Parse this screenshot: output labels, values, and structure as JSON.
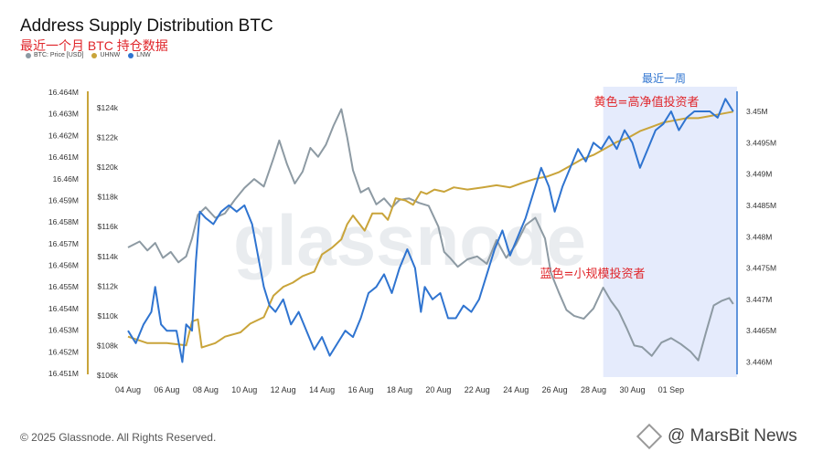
{
  "header": {
    "title": "Address Supply Distribution BTC",
    "subtitle": "最近一个月 BTC 持仓数据"
  },
  "legend": [
    {
      "label": "BTC: Price [USD]",
      "color": "#8d9aa3"
    },
    {
      "label": "UHNW",
      "color": "#c9a43a"
    },
    {
      "label": "LNW",
      "color": "#2f74d0"
    }
  ],
  "footer": {
    "copyright": "© 2025 Glassnode. All Rights Reserved."
  },
  "watermark": {
    "text": "@ MarsBit News"
  },
  "chart_data": {
    "type": "line",
    "x_ticks": [
      "04 Aug",
      "06 Aug",
      "08 Aug",
      "10 Aug",
      "12 Aug",
      "14 Aug",
      "16 Aug",
      "18 Aug",
      "20 Aug",
      "22 Aug",
      "24 Aug",
      "26 Aug",
      "28 Aug",
      "30 Aug",
      "01 Sep"
    ],
    "x_range_days": [
      0,
      31.4
    ],
    "left_axis": {
      "ticks": [
        "16.451M",
        "16.452M",
        "16.453M",
        "16.454M",
        "16.455M",
        "16.456M",
        "16.457M",
        "16.458M",
        "16.459M",
        "16.46M",
        "16.461M",
        "16.462M",
        "16.463M",
        "16.464M"
      ],
      "range": [
        16.451,
        16.464
      ]
    },
    "price_axis": {
      "ticks": [
        "$106k",
        "$108k",
        "$110k",
        "$112k",
        "$114k",
        "$116k",
        "$118k",
        "$120k",
        "$122k",
        "$124k"
      ],
      "range": [
        106,
        124
      ]
    },
    "right_axis": {
      "ticks": [
        "3.446M",
        "3.4465M",
        "3.447M",
        "3.4475M",
        "3.448M",
        "3.4485M",
        "3.449M",
        "3.4495M",
        "3.45M"
      ],
      "range": [
        3.446,
        3.45
      ]
    },
    "series": [
      {
        "name": "BTC: Price [USD]",
        "axis": "price",
        "color": "#8d9aa3",
        "points": [
          [
            0,
            114.6
          ],
          [
            0.6,
            115.0
          ],
          [
            1.0,
            114.4
          ],
          [
            1.4,
            114.9
          ],
          [
            1.8,
            113.9
          ],
          [
            2.2,
            114.3
          ],
          [
            2.6,
            113.6
          ],
          [
            3.0,
            114.0
          ],
          [
            3.3,
            115.2
          ],
          [
            3.6,
            116.8
          ],
          [
            4.0,
            117.3
          ],
          [
            4.5,
            116.6
          ],
          [
            5.0,
            116.9
          ],
          [
            5.5,
            117.8
          ],
          [
            6.0,
            118.6
          ],
          [
            6.5,
            119.2
          ],
          [
            7.0,
            118.7
          ],
          [
            7.5,
            120.6
          ],
          [
            7.8,
            121.8
          ],
          [
            8.2,
            120.2
          ],
          [
            8.6,
            118.9
          ],
          [
            9.0,
            119.7
          ],
          [
            9.4,
            121.3
          ],
          [
            9.8,
            120.7
          ],
          [
            10.2,
            121.5
          ],
          [
            10.6,
            122.8
          ],
          [
            11.0,
            123.9
          ],
          [
            11.3,
            122.0
          ],
          [
            11.6,
            119.8
          ],
          [
            12.0,
            118.3
          ],
          [
            12.4,
            118.6
          ],
          [
            12.8,
            117.5
          ],
          [
            13.2,
            117.9
          ],
          [
            13.6,
            117.3
          ],
          [
            14.0,
            117.8
          ],
          [
            14.5,
            117.9
          ],
          [
            15.0,
            117.6
          ],
          [
            15.5,
            117.4
          ],
          [
            16.0,
            116.0
          ],
          [
            16.3,
            114.3
          ],
          [
            16.6,
            113.9
          ],
          [
            17.0,
            113.3
          ],
          [
            17.5,
            113.8
          ],
          [
            18.0,
            114.0
          ],
          [
            18.5,
            113.5
          ],
          [
            19.0,
            115.1
          ],
          [
            19.5,
            113.9
          ],
          [
            20.0,
            114.8
          ],
          [
            20.5,
            116.1
          ],
          [
            21.0,
            116.6
          ],
          [
            21.5,
            115.2
          ],
          [
            21.8,
            112.9
          ],
          [
            22.2,
            111.6
          ],
          [
            22.6,
            110.4
          ],
          [
            23.0,
            110.0
          ],
          [
            23.5,
            109.8
          ],
          [
            24.0,
            110.5
          ],
          [
            24.5,
            111.9
          ],
          [
            24.9,
            111.0
          ],
          [
            25.3,
            110.3
          ],
          [
            25.7,
            109.2
          ],
          [
            26.1,
            108.0
          ],
          [
            26.5,
            107.9
          ],
          [
            27.0,
            107.3
          ],
          [
            27.5,
            108.2
          ],
          [
            28.0,
            108.5
          ],
          [
            28.5,
            108.1
          ],
          [
            29.0,
            107.6
          ],
          [
            29.4,
            107.0
          ],
          [
            29.8,
            108.9
          ],
          [
            30.2,
            110.7
          ],
          [
            30.6,
            111.0
          ],
          [
            31.0,
            111.2
          ],
          [
            31.2,
            110.8
          ]
        ]
      },
      {
        "name": "UHNW",
        "axis": "left",
        "color": "#c9a43a",
        "points": [
          [
            0,
            16.4527
          ],
          [
            1.0,
            16.4524
          ],
          [
            2.0,
            16.4524
          ],
          [
            3.0,
            16.4523
          ],
          [
            3.3,
            16.4534
          ],
          [
            3.6,
            16.4535
          ],
          [
            3.8,
            16.4522
          ],
          [
            4.5,
            16.4524
          ],
          [
            5.0,
            16.4527
          ],
          [
            5.8,
            16.4529
          ],
          [
            6.3,
            16.4533
          ],
          [
            7.0,
            16.4536
          ],
          [
            7.5,
            16.4546
          ],
          [
            8.0,
            16.455
          ],
          [
            8.5,
            16.4552
          ],
          [
            9.0,
            16.4555
          ],
          [
            9.6,
            16.4557
          ],
          [
            10.0,
            16.4565
          ],
          [
            10.5,
            16.4568
          ],
          [
            11.0,
            16.4572
          ],
          [
            11.3,
            16.4579
          ],
          [
            11.6,
            16.4583
          ],
          [
            12.2,
            16.4576
          ],
          [
            12.6,
            16.4584
          ],
          [
            13.1,
            16.4584
          ],
          [
            13.4,
            16.4581
          ],
          [
            13.8,
            16.4591
          ],
          [
            14.3,
            16.459
          ],
          [
            14.7,
            16.4588
          ],
          [
            15.1,
            16.4594
          ],
          [
            15.4,
            16.4593
          ],
          [
            15.8,
            16.4595
          ],
          [
            16.3,
            16.4594
          ],
          [
            16.8,
            16.4596
          ],
          [
            17.5,
            16.4595
          ],
          [
            18.3,
            16.4596
          ],
          [
            19.0,
            16.4597
          ],
          [
            19.7,
            16.4596
          ],
          [
            20.3,
            16.4598
          ],
          [
            21.0,
            16.46
          ],
          [
            21.6,
            16.4601
          ],
          [
            22.2,
            16.4603
          ],
          [
            22.8,
            16.4606
          ],
          [
            23.4,
            16.4609
          ],
          [
            24.0,
            16.4611
          ],
          [
            24.6,
            16.4614
          ],
          [
            25.2,
            16.4617
          ],
          [
            25.8,
            16.4619
          ],
          [
            26.4,
            16.4622
          ],
          [
            27.0,
            16.4624
          ],
          [
            27.6,
            16.4626
          ],
          [
            28.2,
            16.4627
          ],
          [
            28.8,
            16.4628
          ],
          [
            29.4,
            16.4628
          ],
          [
            30.0,
            16.4629
          ],
          [
            30.6,
            16.463
          ],
          [
            31.2,
            16.4631
          ]
        ]
      },
      {
        "name": "LNW",
        "axis": "right",
        "color": "#2f74d0",
        "points": [
          [
            0,
            3.4465
          ],
          [
            0.4,
            3.4463
          ],
          [
            0.8,
            3.4466
          ],
          [
            1.2,
            3.4468
          ],
          [
            1.4,
            3.4472
          ],
          [
            1.7,
            3.4466
          ],
          [
            2.0,
            3.4465
          ],
          [
            2.5,
            3.4465
          ],
          [
            2.8,
            3.446
          ],
          [
            3.0,
            3.4466
          ],
          [
            3.3,
            3.4465
          ],
          [
            3.5,
            3.4476
          ],
          [
            3.7,
            3.4484
          ],
          [
            4.0,
            3.4483
          ],
          [
            4.4,
            3.4482
          ],
          [
            4.8,
            3.4484
          ],
          [
            5.2,
            3.4485
          ],
          [
            5.6,
            3.4484
          ],
          [
            6.0,
            3.4485
          ],
          [
            6.4,
            3.4482
          ],
          [
            6.7,
            3.4477
          ],
          [
            7.0,
            3.4472
          ],
          [
            7.3,
            3.4469
          ],
          [
            7.6,
            3.4468
          ],
          [
            8.0,
            3.447
          ],
          [
            8.4,
            3.4466
          ],
          [
            8.8,
            3.4468
          ],
          [
            9.2,
            3.4465
          ],
          [
            9.6,
            3.4462
          ],
          [
            10.0,
            3.4464
          ],
          [
            10.4,
            3.4461
          ],
          [
            10.8,
            3.4463
          ],
          [
            11.2,
            3.4465
          ],
          [
            11.6,
            3.4464
          ],
          [
            12.0,
            3.4467
          ],
          [
            12.4,
            3.4471
          ],
          [
            12.8,
            3.4472
          ],
          [
            13.2,
            3.4474
          ],
          [
            13.6,
            3.4471
          ],
          [
            14.0,
            3.4475
          ],
          [
            14.4,
            3.4478
          ],
          [
            14.8,
            3.4475
          ],
          [
            15.1,
            3.4468
          ],
          [
            15.3,
            3.4472
          ],
          [
            15.7,
            3.447
          ],
          [
            16.1,
            3.4471
          ],
          [
            16.5,
            3.4467
          ],
          [
            16.9,
            3.4467
          ],
          [
            17.3,
            3.4469
          ],
          [
            17.7,
            3.4468
          ],
          [
            18.1,
            3.447
          ],
          [
            18.5,
            3.4474
          ],
          [
            18.9,
            3.4478
          ],
          [
            19.3,
            3.4481
          ],
          [
            19.7,
            3.4477
          ],
          [
            20.1,
            3.448
          ],
          [
            20.5,
            3.4483
          ],
          [
            20.9,
            3.4487
          ],
          [
            21.3,
            3.4491
          ],
          [
            21.7,
            3.4488
          ],
          [
            22.0,
            3.4484
          ],
          [
            22.4,
            3.4488
          ],
          [
            22.8,
            3.4491
          ],
          [
            23.2,
            3.4494
          ],
          [
            23.6,
            3.4492
          ],
          [
            24.0,
            3.4495
          ],
          [
            24.4,
            3.4494
          ],
          [
            24.8,
            3.4496
          ],
          [
            25.2,
            3.4494
          ],
          [
            25.6,
            3.4497
          ],
          [
            26.0,
            3.4495
          ],
          [
            26.4,
            3.4491
          ],
          [
            26.8,
            3.4494
          ],
          [
            27.2,
            3.4497
          ],
          [
            27.6,
            3.4498
          ],
          [
            28.0,
            3.45
          ],
          [
            28.4,
            3.4497
          ],
          [
            28.8,
            3.4499
          ],
          [
            29.2,
            3.45
          ],
          [
            29.6,
            3.45
          ],
          [
            30.0,
            3.45
          ],
          [
            30.4,
            3.4499
          ],
          [
            30.8,
            3.4502
          ],
          [
            31.2,
            3.45
          ]
        ]
      }
    ],
    "annotations": [
      {
        "text": "最近一周",
        "color": "#2f74d0"
      },
      {
        "text": "黄色=高净值投资者",
        "color": "#e0262b"
      },
      {
        "text": "蓝色=小规模投资者",
        "color": "#e0262b"
      }
    ],
    "highlight_x_range": [
      24.5,
      31.4
    ],
    "background_watermark": "glassnode",
    "grid": false
  }
}
